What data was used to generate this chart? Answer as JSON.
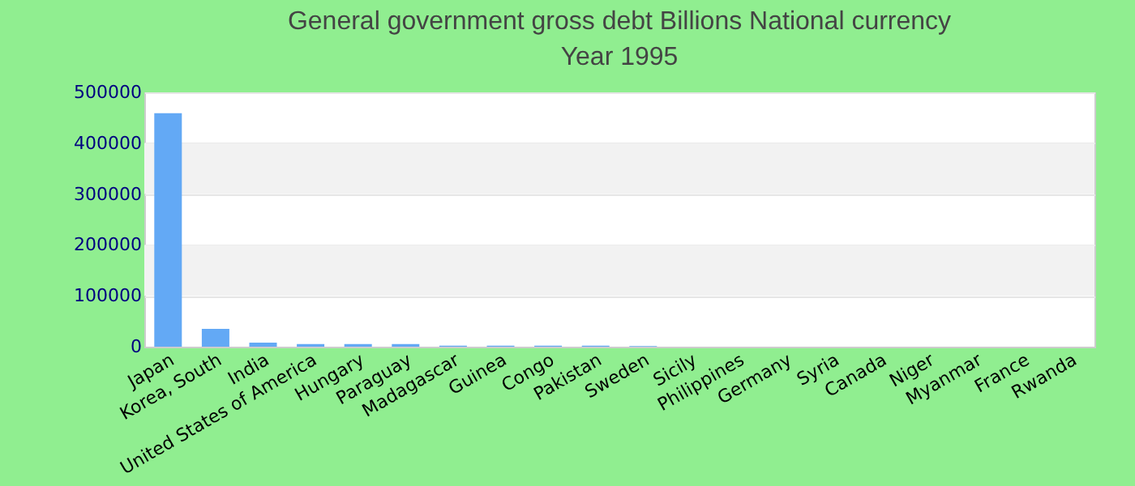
{
  "chart_data": {
    "type": "bar",
    "title": "General government gross debt Billions National currency",
    "subtitle": "Year 1995",
    "categories": [
      "Japan",
      "Korea, South",
      "India",
      "United States of America",
      "Hungary",
      "Paraguay",
      "Madagascar",
      "Guinea",
      "Congo",
      "Pakistan",
      "Sweden",
      "Sicily",
      "Philippines",
      "Germany",
      "Syria",
      "Canada",
      "Niger",
      "Myanmar",
      "France",
      "Rwanda"
    ],
    "values": [
      459000,
      35000,
      8000,
      5000,
      5000,
      5000,
      2000,
      2000,
      2000,
      2000,
      1000,
      0,
      0,
      0,
      0,
      0,
      0,
      0,
      0,
      0
    ],
    "color": "#63a9f5",
    "ylim": [
      0,
      500000
    ],
    "yticks": [
      0,
      100000,
      200000,
      300000,
      400000,
      500000
    ],
    "grid": "y"
  }
}
